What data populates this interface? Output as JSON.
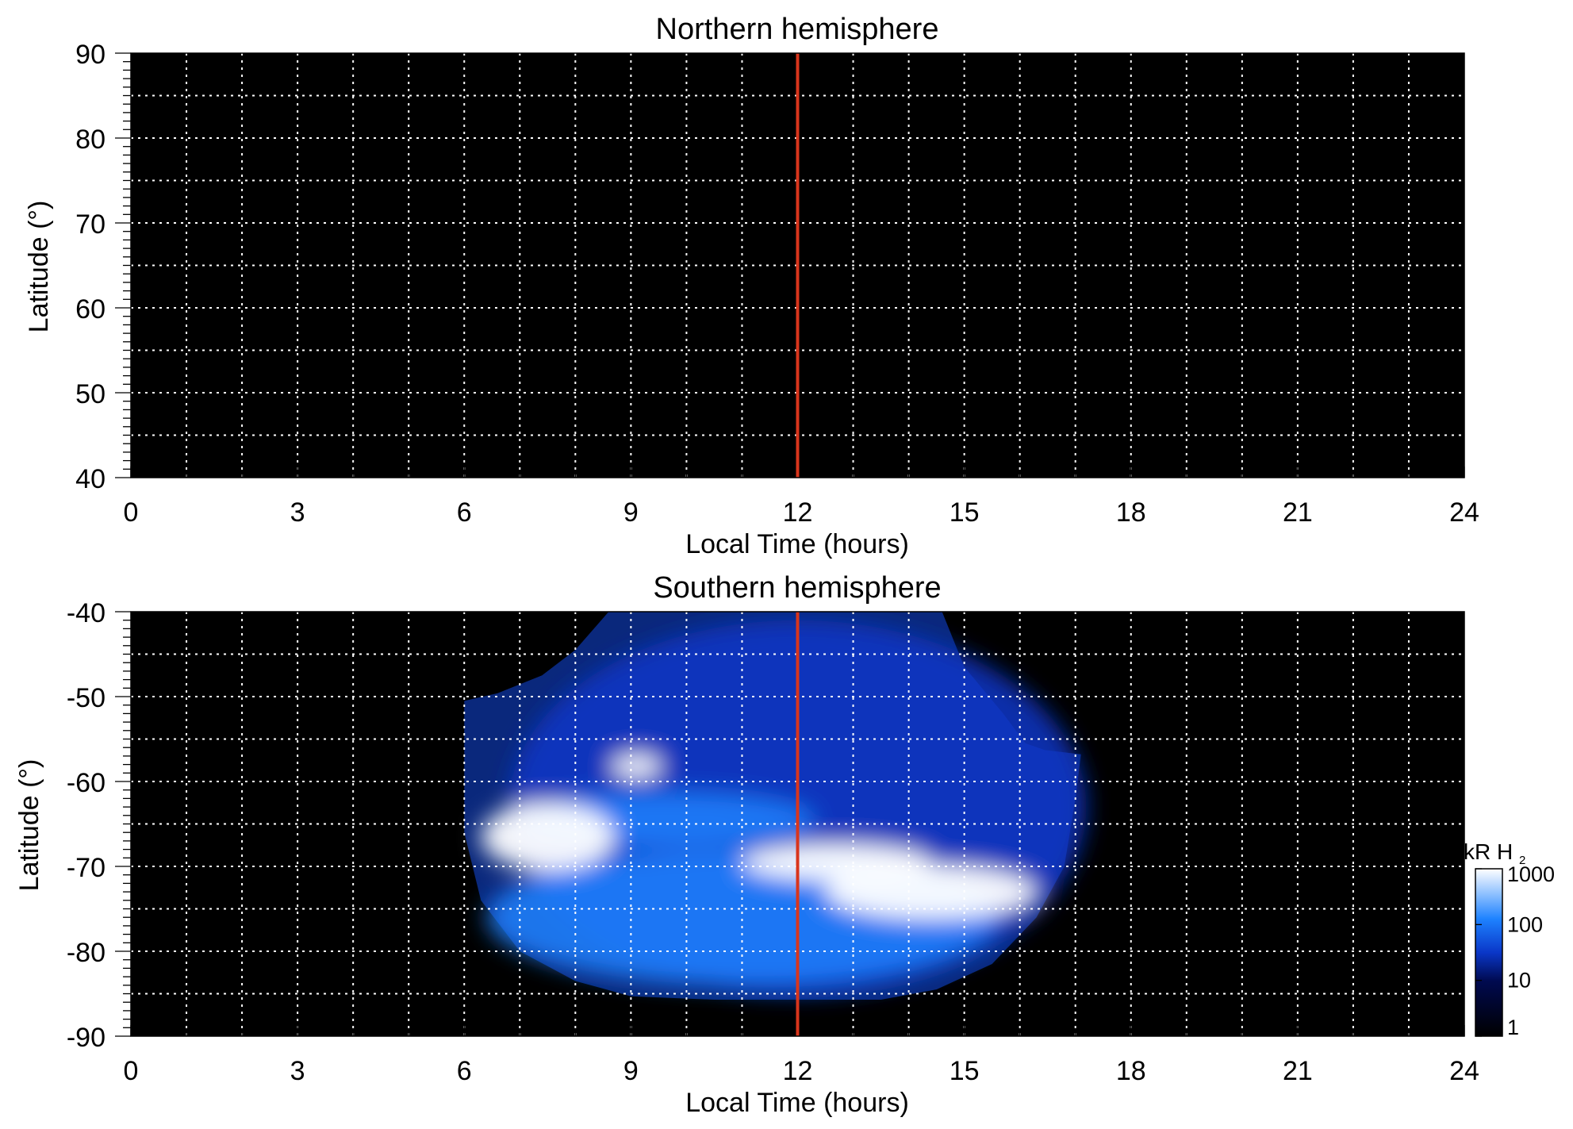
{
  "chart_data": [
    {
      "type": "heatmap",
      "title": "Northern hemisphere",
      "xlabel": "Local Time (hours)",
      "ylabel": "Latitude (°)",
      "xlim": [
        0,
        24
      ],
      "ylim": [
        40,
        90
      ],
      "xticks": [
        "0",
        "3",
        "6",
        "9",
        "12",
        "15",
        "18",
        "21",
        "24"
      ],
      "yticks": [
        "90",
        "80",
        "70",
        "60",
        "50",
        "40"
      ],
      "grid": true,
      "background": "#000000",
      "marker_line": {
        "x": 12,
        "color": "#d9351c"
      },
      "emission_regions": []
    },
    {
      "type": "heatmap",
      "title": "Southern hemisphere",
      "xlabel": "Local Time (hours)",
      "ylabel": "Latitude (°)",
      "xlim": [
        0,
        24
      ],
      "ylim": [
        -90,
        -40
      ],
      "xticks": [
        "0",
        "3",
        "6",
        "9",
        "12",
        "15",
        "18",
        "21",
        "24"
      ],
      "yticks": [
        "-40",
        "-50",
        "-60",
        "-70",
        "-80",
        "-90"
      ],
      "grid": true,
      "background": "#000000",
      "marker_line": {
        "x": 12,
        "color": "#d9351c"
      },
      "coverage_outline": [
        [
          6.0,
          -50.5
        ],
        [
          6.6,
          -49.6
        ],
        [
          7.4,
          -47.5
        ],
        [
          8.0,
          -44.5
        ],
        [
          8.6,
          -40.0
        ],
        [
          14.6,
          -40.0
        ],
        [
          15.0,
          -46.5
        ],
        [
          15.7,
          -52.0
        ],
        [
          16.1,
          -55.5
        ],
        [
          16.45,
          -56.3
        ],
        [
          17.1,
          -56.8
        ],
        [
          17.0,
          -62.0
        ],
        [
          16.8,
          -70.0
        ],
        [
          16.3,
          -76.0
        ],
        [
          15.5,
          -81.5
        ],
        [
          14.5,
          -84.5
        ],
        [
          13.5,
          -85.7
        ],
        [
          10.5,
          -85.7
        ],
        [
          9.0,
          -85.3
        ],
        [
          8.0,
          -83.5
        ],
        [
          7.0,
          -80.0
        ],
        [
          6.3,
          -74.0
        ],
        [
          6.0,
          -66.0
        ]
      ],
      "emission_regions": [
        {
          "lt": 12.0,
          "lat": -63.0,
          "lt_radius": 5.2,
          "lat_radius": 22.0,
          "kR": 30
        },
        {
          "lt": 11.0,
          "lat": -76.0,
          "lt_radius": 4.6,
          "lat_radius": 8.0,
          "kR": 100
        },
        {
          "lt": 9.6,
          "lat": -64.5,
          "lt_radius": 2.7,
          "lat_radius": 3.2,
          "kR": 300
        },
        {
          "lt": 7.5,
          "lat": -66.5,
          "lt_radius": 1.2,
          "lat_radius": 4.0,
          "kR": 1000
        },
        {
          "lt": 12.7,
          "lat": -69.5,
          "lt_radius": 1.7,
          "lat_radius": 2.2,
          "kR": 1000
        },
        {
          "lt": 14.4,
          "lat": -73.0,
          "lt_radius": 1.9,
          "lat_radius": 3.2,
          "kR": 1000
        },
        {
          "lt": 9.1,
          "lat": -58.2,
          "lt_radius": 0.45,
          "lat_radius": 1.4,
          "kR": 1000
        }
      ],
      "colorbar": {
        "title": "kR H",
        "title_subscript": "2",
        "scale": "log",
        "range": [
          1,
          1000
        ],
        "ticks": [
          "1",
          "10",
          "100",
          "1000"
        ],
        "colors": [
          "#000000",
          "#000a50",
          "#0a37c8",
          "#1e82ff",
          "#ffffff"
        ]
      }
    }
  ]
}
